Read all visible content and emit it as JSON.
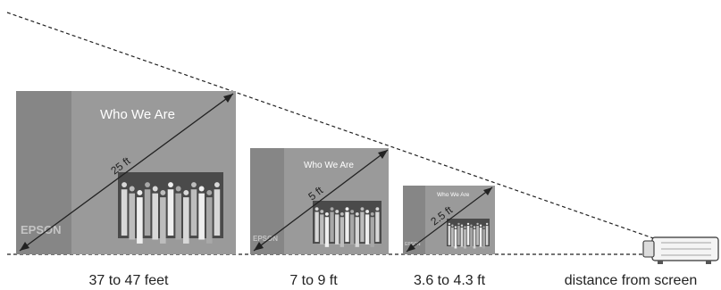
{
  "screens": [
    {
      "slide_title": "Who We Are",
      "brand": "EPSON",
      "diagonal": "25 ft",
      "distance": "37 to 47 feet"
    },
    {
      "slide_title": "Who We Are",
      "brand": "EPSON",
      "diagonal": "5 ft",
      "distance": "7 to 9 ft"
    },
    {
      "slide_title": "Who We Are",
      "brand": "EPSON",
      "diagonal": "2.5 ft",
      "distance": "3.6 to 4.3 ft"
    }
  ],
  "projector_label": "distance from screen",
  "colors": {
    "screen_main": "#9a9a9a",
    "screen_sidebar": "#868686",
    "photo_bg": "#4a4a4a",
    "line": "#222222",
    "text": "#222222"
  }
}
